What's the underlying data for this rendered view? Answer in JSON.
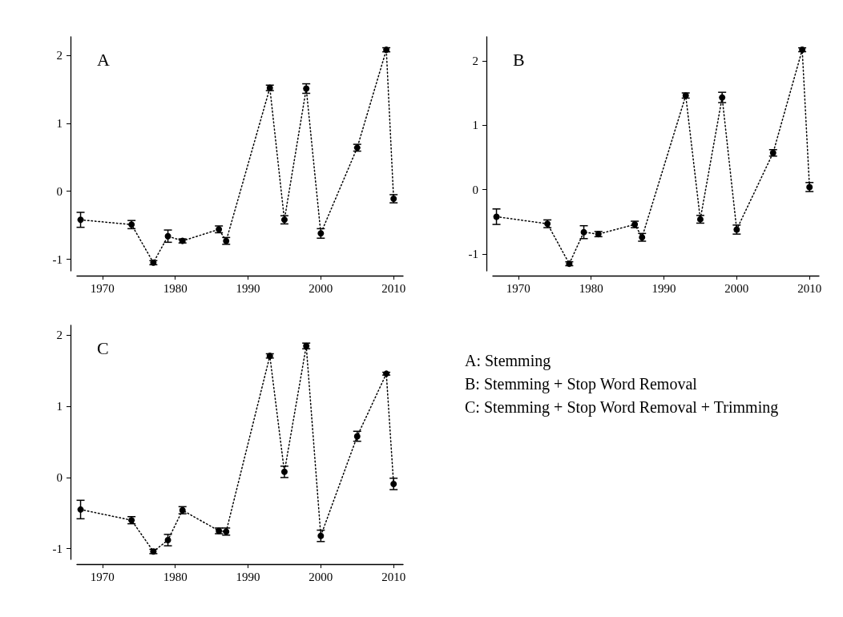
{
  "chart_data": [
    {
      "type": "line",
      "title": "A",
      "x": [
        1967,
        1974,
        1977,
        1979,
        1981,
        1986,
        1987,
        1993,
        1995,
        1998,
        2000,
        2005,
        2009,
        2010
      ],
      "xlim": [
        1966.5,
        2011.3
      ],
      "xticks": [
        1970,
        1980,
        1990,
        2000,
        2010
      ],
      "ylim": [
        -1.17,
        2.27
      ],
      "yticks": [
        -1,
        0,
        1,
        2
      ],
      "marker": "circle",
      "line_style": "dotted",
      "series": [
        {
          "color": "#000000",
          "values": [
            -0.42,
            -0.49,
            -1.05,
            -0.66,
            -0.73,
            -0.56,
            -0.73,
            1.52,
            -0.42,
            1.51,
            -0.62,
            0.64,
            2.08,
            -0.11
          ],
          "errors": [
            0.11,
            0.06,
            0.03,
            0.09,
            0.03,
            0.05,
            0.05,
            0.04,
            0.06,
            0.07,
            0.07,
            0.05,
            0.03,
            0.06
          ]
        }
      ]
    },
    {
      "type": "line",
      "title": "B",
      "x": [
        1967,
        1974,
        1977,
        1979,
        1981,
        1986,
        1987,
        1993,
        1995,
        1998,
        2000,
        2005,
        2009,
        2010
      ],
      "xlim": [
        1966.5,
        2011.3
      ],
      "xticks": [
        1970,
        1980,
        1990,
        2000,
        2010
      ],
      "ylim": [
        -1.26,
        2.37
      ],
      "yticks": [
        -1,
        0,
        1,
        2
      ],
      "marker": "circle",
      "line_style": "dotted",
      "series": [
        {
          "color": "#000000",
          "values": [
            -0.42,
            -0.53,
            -1.15,
            -0.66,
            -0.69,
            -0.54,
            -0.74,
            1.46,
            -0.46,
            1.43,
            -0.62,
            0.57,
            2.17,
            0.04
          ],
          "errors": [
            0.12,
            0.06,
            0.03,
            0.1,
            0.04,
            0.05,
            0.06,
            0.04,
            0.06,
            0.08,
            0.07,
            0.05,
            0.03,
            0.07
          ]
        }
      ]
    },
    {
      "type": "line",
      "title": "C",
      "x": [
        1967,
        1974,
        1977,
        1979,
        1981,
        1986,
        1987,
        1993,
        1995,
        1998,
        2000,
        2005,
        2009,
        2010
      ],
      "xlim": [
        1966.5,
        2011.3
      ],
      "xticks": [
        1970,
        1980,
        1990,
        2000,
        2010
      ],
      "ylim": [
        -1.15,
        2.14
      ],
      "yticks": [
        -1,
        0,
        1,
        2
      ],
      "marker": "circle",
      "line_style": "dotted",
      "series": [
        {
          "color": "#000000",
          "values": [
            -0.45,
            -0.6,
            -1.04,
            -0.88,
            -0.46,
            -0.75,
            -0.76,
            1.71,
            0.08,
            1.85,
            -0.82,
            0.58,
            1.46,
            -0.09
          ],
          "errors": [
            0.13,
            0.05,
            0.03,
            0.08,
            0.05,
            0.04,
            0.05,
            0.03,
            0.08,
            0.04,
            0.08,
            0.07,
            0.02,
            0.08
          ]
        }
      ]
    },
    {
      "type": "other",
      "annotations": [
        "A: Stemming",
        "B: Stemming + Stop Word Removal",
        "C: Stemming + Stop Word Removal + Trimming"
      ]
    }
  ]
}
